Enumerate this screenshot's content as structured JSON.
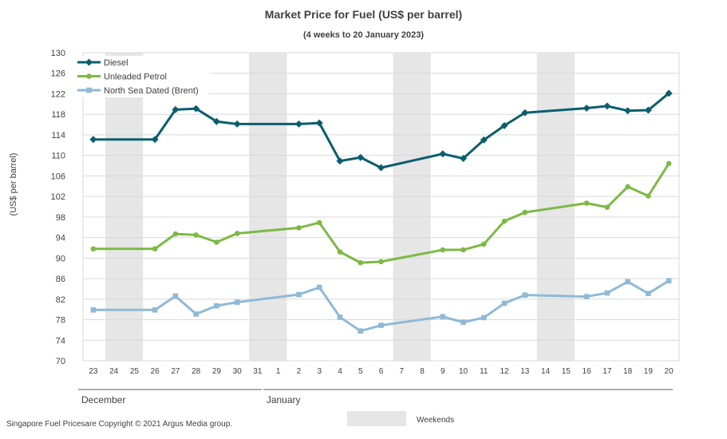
{
  "chart_data": {
    "type": "line",
    "title": "Market Price for Fuel (US$ per barrel)",
    "subtitle": "(4 weeks to 20 January 2023)",
    "ylabel": "(US$ per barrel)",
    "ylim": [
      70,
      130
    ],
    "yticks": [
      70,
      74,
      78,
      82,
      86,
      90,
      94,
      98,
      102,
      106,
      110,
      114,
      118,
      122,
      126,
      130
    ],
    "categories": [
      "23",
      "24",
      "25",
      "26",
      "27",
      "28",
      "29",
      "30",
      "31",
      "1",
      "2",
      "3",
      "4",
      "5",
      "6",
      "7",
      "8",
      "9",
      "10",
      "11",
      "12",
      "13",
      "14",
      "15",
      "16",
      "17",
      "18",
      "19",
      "20"
    ],
    "months": [
      {
        "label": "December",
        "start": "23",
        "end": "31"
      },
      {
        "label": "January",
        "start": "1",
        "end": "20"
      }
    ],
    "weekends": [
      [
        "24",
        "25"
      ],
      [
        "31",
        "1"
      ],
      [
        "7",
        "8"
      ],
      [
        "14",
        "15"
      ]
    ],
    "weekend_label": "Weekends",
    "grid": true,
    "legend_position": "top-left",
    "series": [
      {
        "name": "Diesel",
        "color": "#0b5e6e",
        "marker": "diamond",
        "values": [
          113.1,
          null,
          null,
          113.1,
          118.9,
          119.1,
          116.6,
          116.1,
          null,
          null,
          116.1,
          116.3,
          108.9,
          109.6,
          107.6,
          null,
          null,
          110.3,
          109.4,
          113.0,
          115.8,
          118.3,
          null,
          null,
          119.2,
          119.6,
          118.7,
          118.8,
          122.1
        ]
      },
      {
        "name": "Unleaded Petrol",
        "color": "#7db945",
        "marker": "circle",
        "values": [
          91.8,
          null,
          null,
          91.8,
          94.7,
          94.5,
          93.1,
          94.8,
          null,
          null,
          95.9,
          96.9,
          91.2,
          89.1,
          89.3,
          null,
          null,
          91.6,
          91.6,
          92.7,
          97.2,
          98.9,
          null,
          null,
          100.7,
          99.9,
          103.9,
          102.1,
          108.4
        ]
      },
      {
        "name": "North Sea Dated (Brent)",
        "color": "#8fb9d6",
        "marker": "square",
        "values": [
          79.9,
          null,
          null,
          79.9,
          82.6,
          79.1,
          80.7,
          81.4,
          null,
          null,
          82.9,
          84.3,
          78.5,
          75.8,
          76.9,
          null,
          null,
          78.6,
          77.5,
          78.4,
          81.2,
          82.8,
          null,
          null,
          82.5,
          83.2,
          85.4,
          83.1,
          85.6
        ]
      }
    ]
  },
  "footer": {
    "source": "Singapore Fuel Pricesare Copyright © 2021 Argus Media group."
  }
}
